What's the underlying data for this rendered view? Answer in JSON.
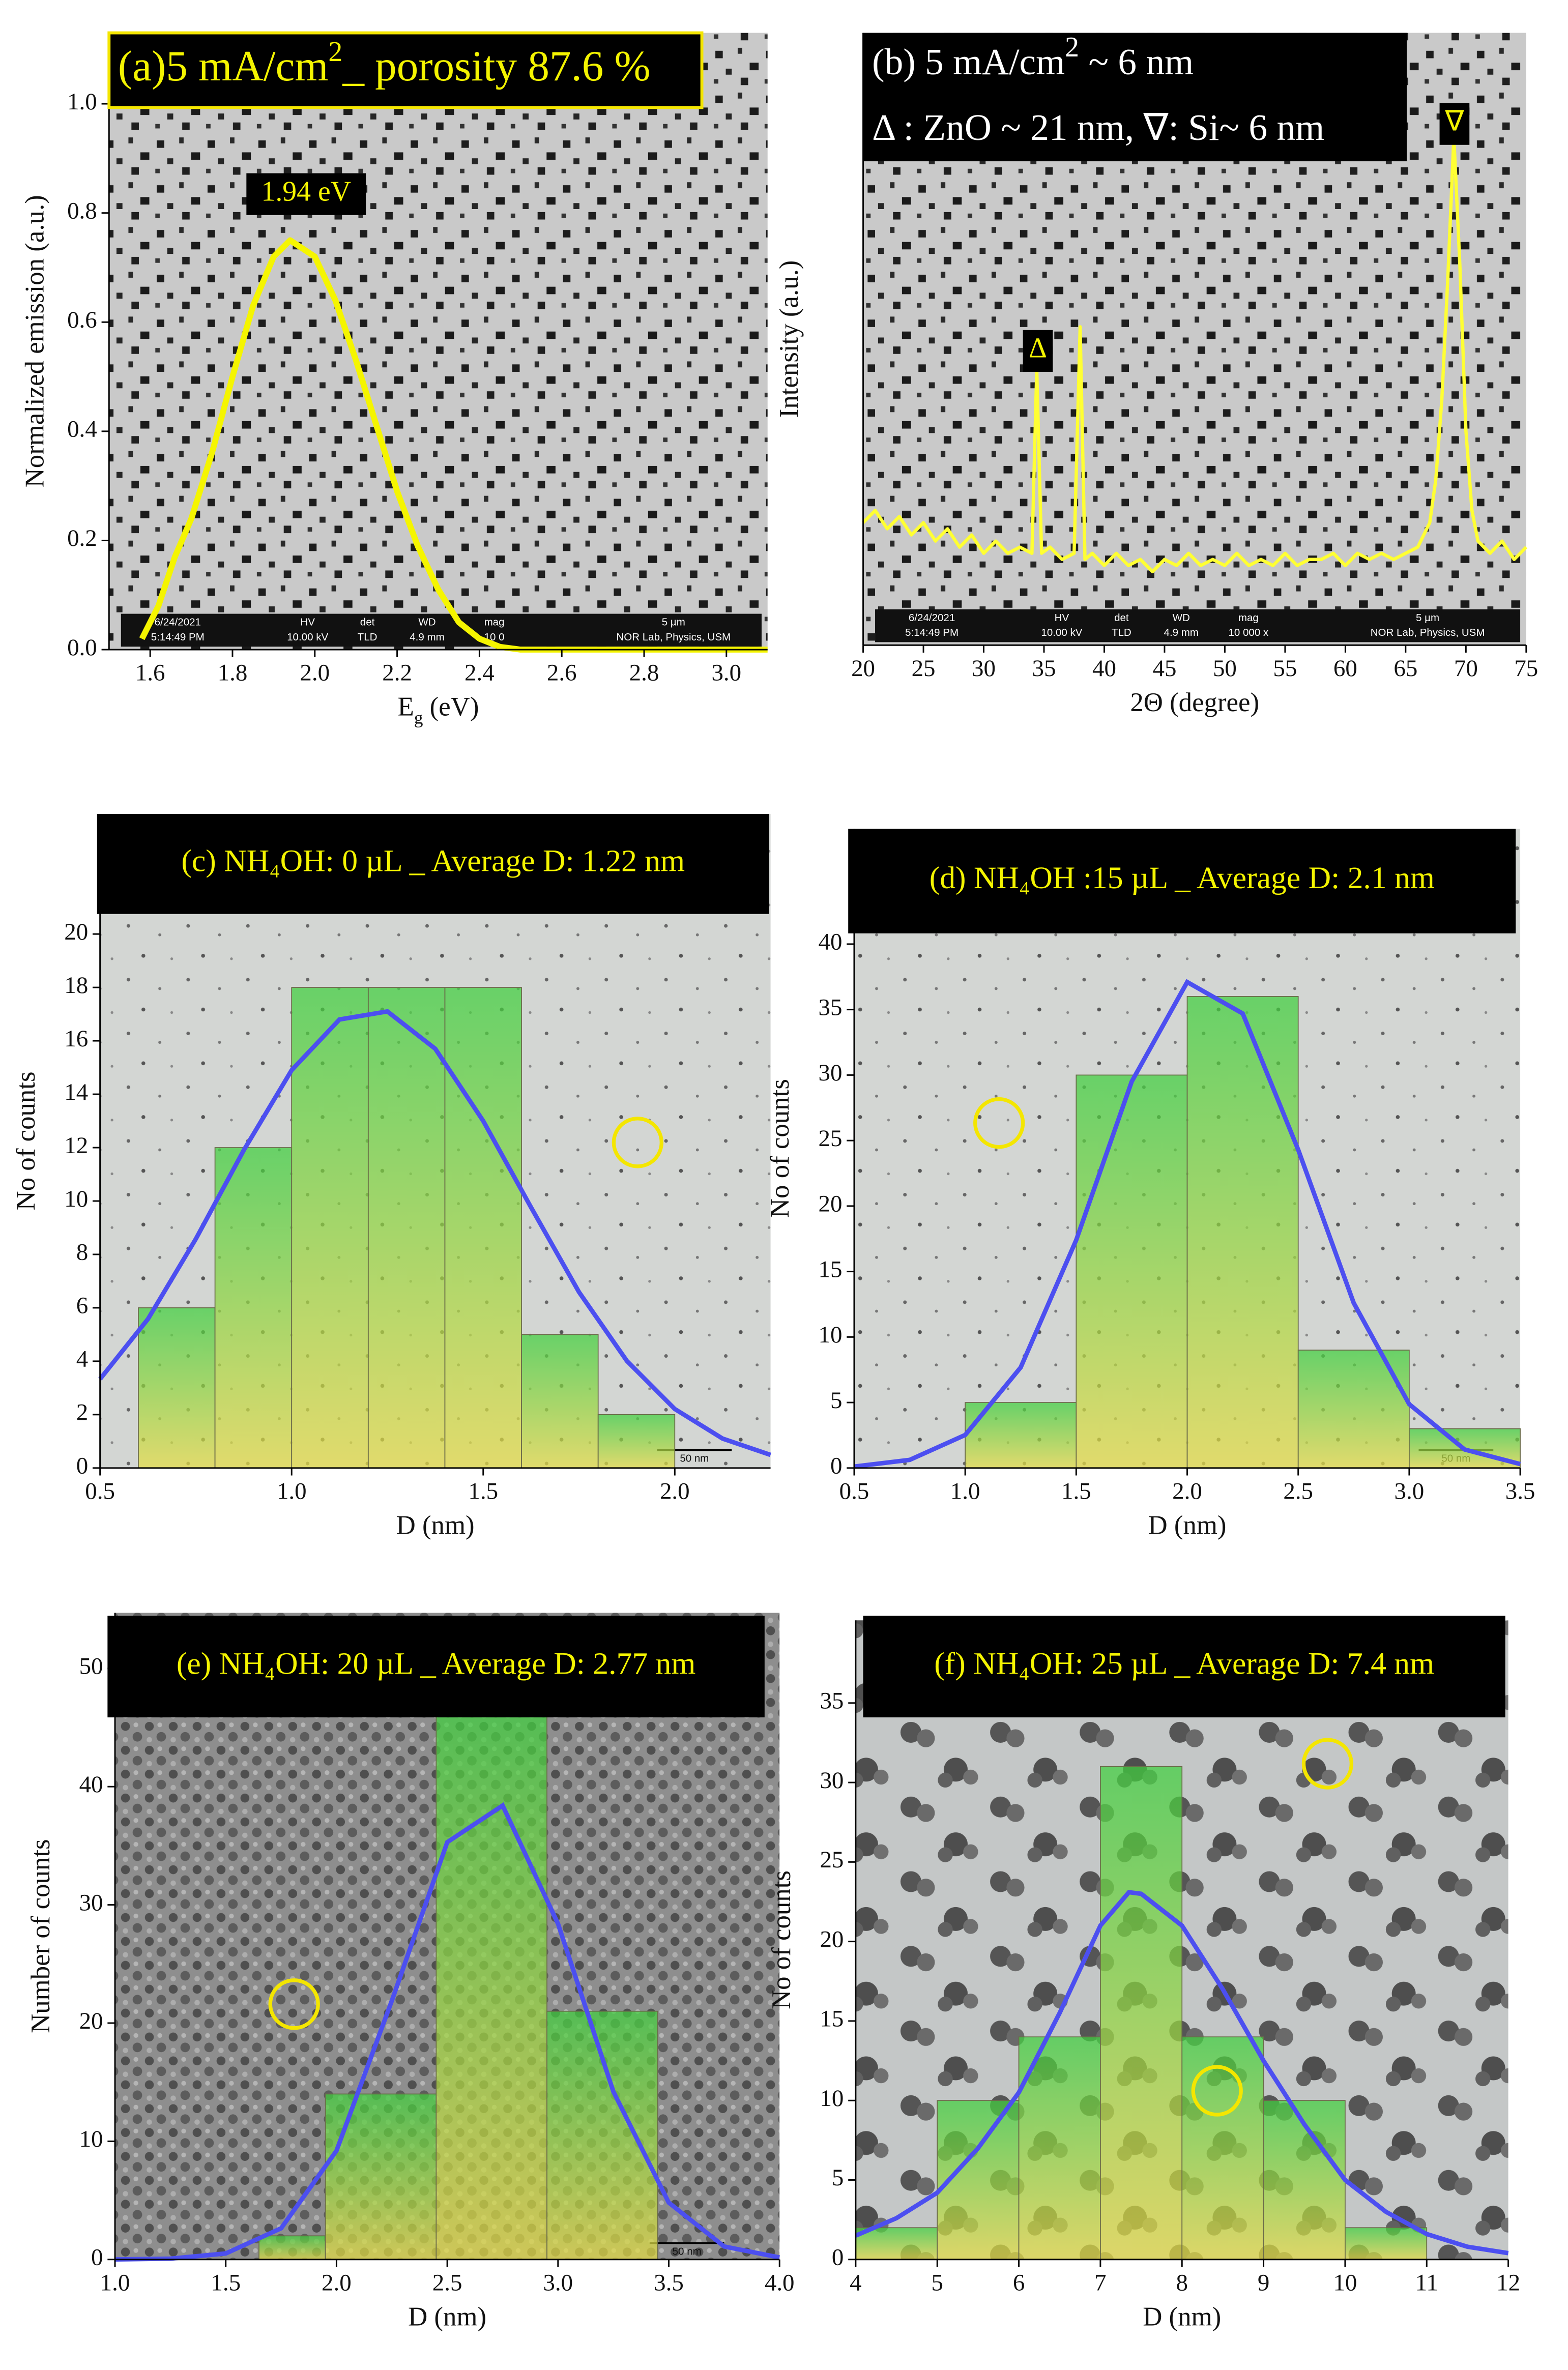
{
  "chart_data": [
    {
      "type": "line",
      "title": [
        "(a)5 mA/cm",
        "2",
        "_ porosity 87.6 %"
      ],
      "xlabel": [
        "E",
        "g",
        " (eV)"
      ],
      "ylabel": "Normalized emission (a.u.)",
      "annotations": [
        "1.94 eV"
      ],
      "x": [
        1.58,
        1.62,
        1.66,
        1.7,
        1.75,
        1.8,
        1.85,
        1.9,
        1.94,
        2.0,
        2.05,
        2.1,
        2.15,
        2.2,
        2.25,
        2.3,
        2.35,
        2.4,
        2.45,
        2.5,
        2.7,
        3.1
      ],
      "values": [
        0.02,
        0.08,
        0.17,
        0.24,
        0.36,
        0.5,
        0.63,
        0.72,
        0.75,
        0.72,
        0.64,
        0.53,
        0.41,
        0.29,
        0.19,
        0.11,
        0.05,
        0.02,
        0.005,
        0,
        0,
        0
      ],
      "color": "#f5f500",
      "xlim": [
        1.5,
        3.1
      ],
      "ylim": [
        0,
        1.13
      ],
      "xticks": [
        1.6,
        1.8,
        {
          "value": 2.0,
          "label": "2.0"
        },
        2.2,
        2.4,
        2.6,
        2.8,
        {
          "value": 3.0,
          "label": "3.0"
        }
      ],
      "yticks": [
        {
          "value": 0,
          "label": "0.0"
        },
        0.2,
        0.4,
        0.6,
        0.8,
        {
          "value": 1.0,
          "label": "1.0"
        }
      ],
      "image_info": [
        "6/24/2021",
        "5:14:49 PM",
        "HV",
        "10.00 kV",
        "det",
        "TLD",
        "WD",
        "4.9 mm",
        "mag",
        "10 0",
        "5 µm",
        "NOR Lab, Physics, USM"
      ]
    },
    {
      "type": "line",
      "title": [
        "(b) 5 mA/cm",
        "2",
        " ~ 6 nm"
      ],
      "subtitle": "Δ : ZnO ~ 21 nm, ∇: Si~ 6 nm",
      "xlabel": "2Θ (degree)",
      "ylabel": "Intensity (a.u.)",
      "annotations": [
        "Δ",
        "∇"
      ],
      "x": [
        20,
        21,
        22,
        23,
        24,
        25,
        26,
        27,
        28,
        29,
        30,
        31,
        32,
        33,
        34,
        34.4,
        34.8,
        35.5,
        36.5,
        37.5,
        38,
        38.4,
        39,
        40,
        41,
        42,
        43,
        44,
        45,
        46,
        47,
        48,
        49,
        50,
        51,
        52,
        53,
        54,
        55,
        56,
        57,
        58,
        59,
        60,
        61,
        62,
        63,
        64,
        65,
        66,
        67,
        67.5,
        68,
        68.5,
        69,
        69.5,
        70,
        70.5,
        71,
        72,
        73,
        74,
        75
      ],
      "values": [
        0.2,
        0.22,
        0.19,
        0.21,
        0.18,
        0.2,
        0.17,
        0.19,
        0.16,
        0.18,
        0.15,
        0.17,
        0.15,
        0.16,
        0.15,
        0.45,
        0.15,
        0.16,
        0.14,
        0.15,
        0.52,
        0.14,
        0.15,
        0.13,
        0.15,
        0.13,
        0.14,
        0.12,
        0.14,
        0.13,
        0.15,
        0.13,
        0.14,
        0.13,
        0.15,
        0.13,
        0.14,
        0.13,
        0.15,
        0.13,
        0.14,
        0.14,
        0.15,
        0.13,
        0.15,
        0.14,
        0.15,
        0.14,
        0.15,
        0.16,
        0.2,
        0.27,
        0.4,
        0.6,
        0.83,
        0.62,
        0.35,
        0.22,
        0.17,
        0.15,
        0.17,
        0.14,
        0.16
      ],
      "color": "#ffff33",
      "xlim": [
        20,
        75
      ],
      "ylim": [
        0,
        1
      ],
      "xticks": [
        20,
        25,
        30,
        35,
        40,
        45,
        50,
        55,
        60,
        65,
        70,
        75
      ],
      "image_info": [
        "6/24/2021",
        "5:14:49 PM",
        "HV",
        "10.00 kV",
        "det",
        "TLD",
        "WD",
        "4.9 mm",
        "mag",
        "10 000 x",
        "5 µm",
        "NOR Lab, Physics, USM"
      ]
    },
    {
      "type": "histogram",
      "title": "(c) NH₄OH: 0 µL _ Average D: 1.22 nm",
      "xlabel": "D (nm)",
      "ylabel": "No of counts",
      "scale_bar": "50 nm",
      "bins": [
        0.6,
        0.8,
        1.0,
        1.2,
        1.4,
        1.6,
        1.8,
        2.0
      ],
      "values": [
        6,
        12,
        18,
        18,
        18,
        5,
        2
      ],
      "colors": [
        "#3fcf3f",
        "#e6dc44"
      ],
      "fit": {
        "color": "#4c4ff0",
        "x": [
          0.5,
          0.625,
          0.75,
          0.875,
          1.0,
          1.125,
          1.25,
          1.375,
          1.5,
          1.625,
          1.75,
          1.875,
          2.0,
          2.125,
          2.25
        ],
        "values": [
          3.33,
          5.58,
          8.58,
          11.9,
          14.9,
          16.8,
          17.1,
          15.7,
          13.0,
          9.76,
          6.59,
          4.01,
          2.21,
          1.1,
          0.49
        ]
      },
      "xlim": [
        0.5,
        2.25
      ],
      "ylim": [
        0,
        24.5
      ],
      "xticks": [
        0.5,
        {
          "value": 1.0,
          "label": "1.0"
        },
        1.5,
        {
          "value": 2.0,
          "label": "2.0"
        }
      ],
      "yticks": [
        0,
        2,
        4,
        6,
        8,
        10,
        12,
        14,
        16,
        18,
        20
      ]
    },
    {
      "type": "histogram",
      "title": "(d) NH₄OH :15 µL _ Average D: 2.1 nm",
      "xlabel": "D (nm)",
      "ylabel": "No of counts",
      "scale_bar": "50 nm",
      "bins": [
        1.0,
        1.5,
        2.0,
        2.5,
        3.0,
        3.5
      ],
      "values": [
        5,
        30,
        36,
        9,
        3
      ],
      "colors": [
        "#3fcf3f",
        "#e6dc44"
      ],
      "fit": {
        "color": "#4c4ff0",
        "x": [
          0.5,
          0.75,
          1.0,
          1.25,
          1.5,
          1.75,
          2.0,
          2.25,
          2.5,
          2.75,
          3.0,
          3.25,
          3.5
        ],
        "values": [
          0.11,
          0.62,
          2.52,
          7.68,
          17.4,
          29.5,
          37.1,
          34.7,
          24.3,
          12.6,
          4.87,
          1.41,
          0.3
        ]
      },
      "xlim": [
        0.5,
        3.5
      ],
      "ylim": [
        0,
        48.8
      ],
      "xticks": [
        0.5,
        {
          "value": 1.0,
          "label": "1.0"
        },
        1.5,
        {
          "value": 2.0,
          "label": "2.0"
        },
        2.5,
        {
          "value": 3.0,
          "label": "3.0"
        },
        3.5
      ],
      "yticks": [
        0,
        5,
        10,
        15,
        20,
        25,
        30,
        35,
        40
      ]
    },
    {
      "type": "histogram",
      "title": "(e) NH₄OH: 20 µL _ Average D: 2.77 nm",
      "xlabel": "D (nm)",
      "ylabel": "Number of counts",
      "scale_bar": "50 nm",
      "bins": [
        1.65,
        1.95,
        2.45,
        2.95,
        3.45
      ],
      "values": [
        2,
        14,
        46,
        21
      ],
      "colors": [
        "#3fcf3f",
        "#e6dc44"
      ],
      "fit": {
        "color": "#4c4ff0",
        "x": [
          1.0,
          1.25,
          1.5,
          1.75,
          2.0,
          2.25,
          2.5,
          2.75,
          3.0,
          3.25,
          3.5,
          3.75,
          4.0
        ],
        "values": [
          0.006,
          0.07,
          0.51,
          2.64,
          9.2,
          21.9,
          35.3,
          38.4,
          28.4,
          14.2,
          4.81,
          1.1,
          0.17
        ]
      },
      "xlim": [
        1.0,
        4.0
      ],
      "ylim": [
        0,
        54.7
      ],
      "xticks": [
        {
          "value": 1.0,
          "label": "1.0"
        },
        1.5,
        {
          "value": 2.0,
          "label": "2.0"
        },
        2.5,
        {
          "value": 3.0,
          "label": "3.0"
        },
        3.5,
        {
          "value": 4.0,
          "label": "4.0"
        }
      ],
      "yticks": [
        0,
        10,
        20,
        30,
        40,
        50
      ]
    },
    {
      "type": "histogram",
      "title": "(f) NH₄OH: 25 µL _ Average D: 7.4 nm",
      "xlabel": "D (nm)",
      "ylabel": "No of counts",
      "bins": [
        4,
        5,
        6,
        7,
        8,
        9,
        10,
        11
      ],
      "values": [
        2,
        10,
        14,
        31,
        14,
        10,
        2
      ],
      "colors": [
        "#3fcf3f",
        "#e6dc44"
      ],
      "fit": {
        "color": "#4c4ff0",
        "x": [
          4,
          4.5,
          5,
          5.5,
          6,
          6.5,
          7,
          7.35,
          7.5,
          8,
          8.5,
          9,
          9.5,
          10,
          10.5,
          11,
          11.5,
          12
        ],
        "values": [
          1.5,
          2.6,
          4.2,
          7,
          10.5,
          15.5,
          21,
          23.1,
          23,
          21,
          17,
          12.5,
          8.5,
          5,
          3,
          1.6,
          0.8,
          0.4
        ]
      },
      "xlim": [
        4,
        12
      ],
      "ylim": [
        0,
        40.2
      ],
      "xticks": [
        4,
        5,
        6,
        7,
        8,
        9,
        10,
        11,
        12
      ],
      "yticks": [
        0,
        5,
        10,
        15,
        20,
        25,
        30,
        35
      ]
    }
  ]
}
